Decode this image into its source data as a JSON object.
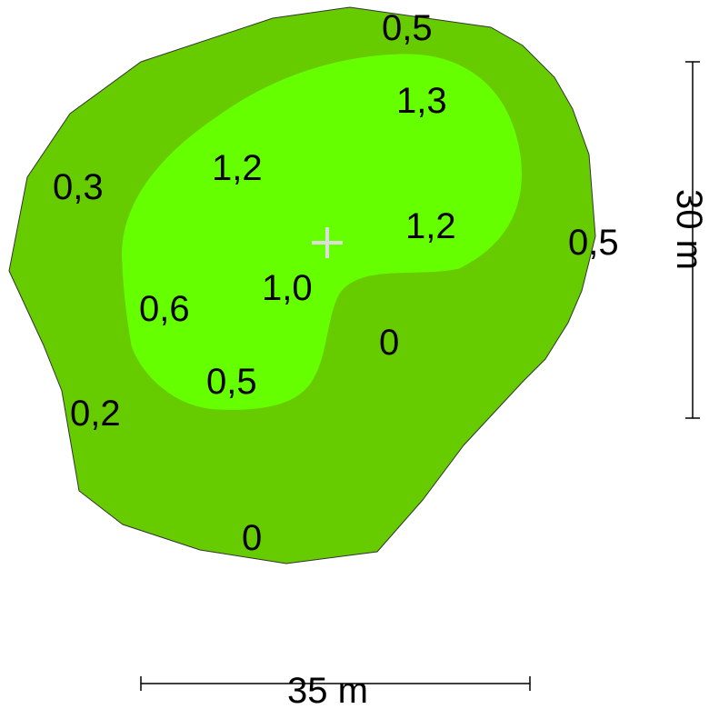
{
  "colors": {
    "outer_zone": "#66cc00",
    "inner_zone": "#66ff00",
    "outline": "#333333",
    "center_marker": "#dddddd",
    "scale_line": "#000000"
  },
  "depth_labels": [
    {
      "id": "top",
      "text": "0,5"
    },
    {
      "id": "upper-inner",
      "text": "1,3"
    },
    {
      "id": "left-inner",
      "text": "1,2"
    },
    {
      "id": "outer-left",
      "text": "0,3"
    },
    {
      "id": "center-right",
      "text": "1,2"
    },
    {
      "id": "outer-right",
      "text": "0,5"
    },
    {
      "id": "center",
      "text": "1,0"
    },
    {
      "id": "inner-left",
      "text": "0,6"
    },
    {
      "id": "inner-bottom",
      "text": "0,5"
    },
    {
      "id": "bay",
      "text": "0"
    },
    {
      "id": "outer-lower-left",
      "text": "0,2"
    },
    {
      "id": "bottom",
      "text": "0"
    }
  ],
  "scale": {
    "width_label": "35 m",
    "height_label": "30 m"
  },
  "center_marker_icon": "plus-icon"
}
